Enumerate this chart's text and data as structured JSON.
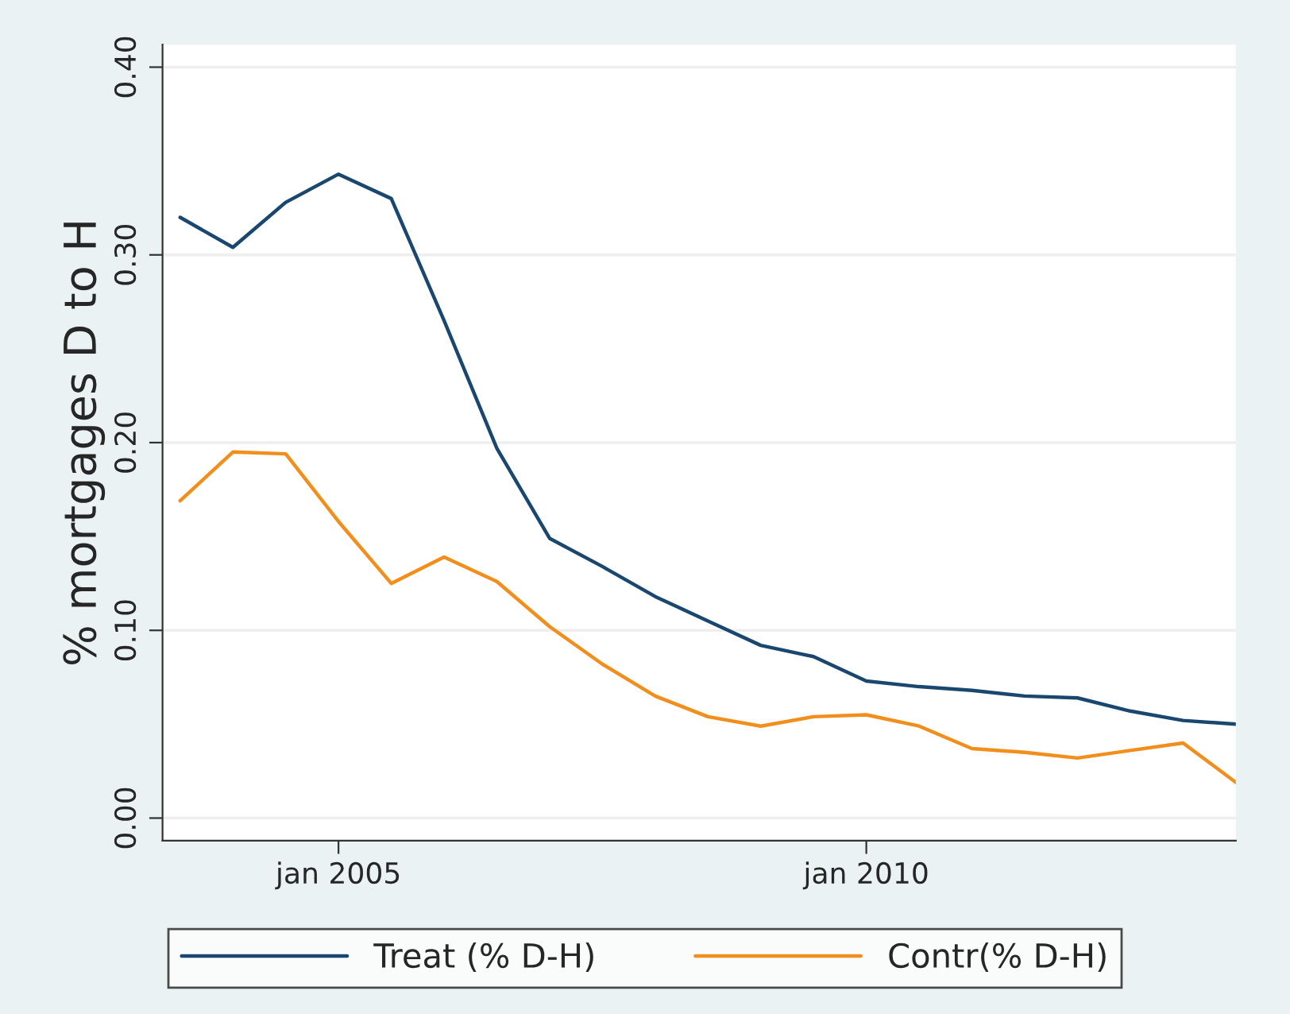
{
  "chart_data": {
    "type": "line",
    "ylabel": "% mortgages D to H",
    "x": [
      "2003-07",
      "2004-01",
      "2004-07",
      "2005-01",
      "2005-07",
      "2006-01",
      "2006-07",
      "2007-01",
      "2007-07",
      "2008-01",
      "2008-07",
      "2009-01",
      "2009-07",
      "2010-01",
      "2010-07",
      "2011-01",
      "2011-07",
      "2012-01",
      "2012-07",
      "2013-01",
      "2013-07"
    ],
    "series": [
      {
        "name": "Treat (% D-H)",
        "color": "#1a476f",
        "values": [
          0.32,
          0.304,
          0.328,
          0.343,
          0.33,
          0.265,
          0.197,
          0.149,
          0.134,
          0.118,
          0.105,
          0.092,
          0.086,
          0.073,
          0.07,
          0.068,
          0.065,
          0.064,
          0.057,
          0.052,
          0.05
        ]
      },
      {
        "name": "Contr(% D-H)",
        "color": "#f28e1c",
        "values": [
          0.169,
          0.195,
          0.194,
          0.158,
          0.125,
          0.139,
          0.126,
          0.102,
          0.082,
          0.065,
          0.054,
          0.049,
          0.054,
          0.055,
          0.049,
          0.037,
          0.035,
          0.032,
          0.036,
          0.04,
          0.019
        ]
      }
    ],
    "xlim": [
      "2003-05",
      "2013-07"
    ],
    "xticks": [
      {
        "value": "2005-01",
        "label": "jan 2005"
      },
      {
        "value": "2010-01",
        "label": "jan 2010"
      }
    ],
    "ylim": [
      -0.012,
      0.412
    ],
    "yticks": [
      {
        "value": 0,
        "label": "0.00"
      },
      {
        "value": 0.1,
        "label": "0.10"
      },
      {
        "value": 0.2,
        "label": "0.20"
      },
      {
        "value": 0.3,
        "label": "0.30"
      },
      {
        "value": 0.4,
        "label": "0.40"
      }
    ],
    "grid": "y",
    "legend": "bottom",
    "marker": "none",
    "line_style": "solid"
  }
}
